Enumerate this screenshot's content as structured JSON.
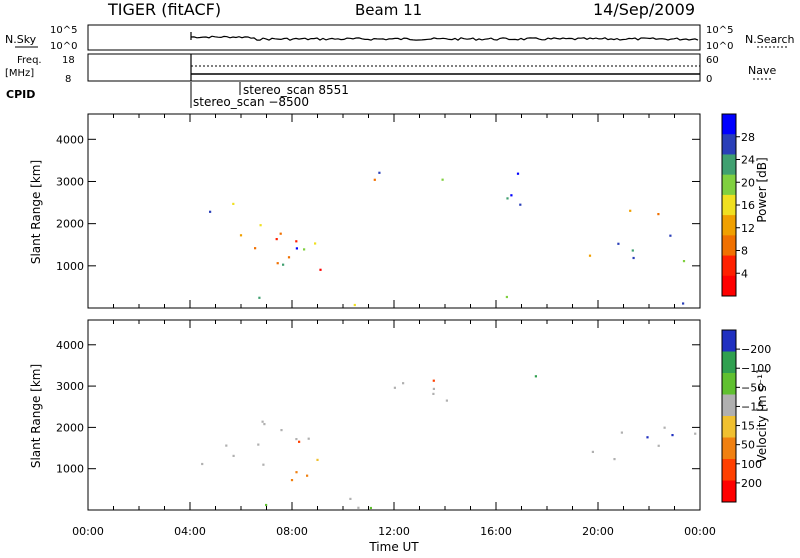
{
  "header": {
    "radar": "TIGER (fitACF)",
    "beam": "Beam 11",
    "date": "14/Sep/2009"
  },
  "labels": {
    "nsky": "N.Sky",
    "nsearch": "N.Search",
    "freq_line1": "Freq.",
    "freq_line2": "[MHz]",
    "nave": "Nave",
    "cpid": "CPID",
    "stereo_scan_1": "stereo_scan 8551",
    "stereo_scan_2": "stereo_scan −8500"
  },
  "chart_data": [
    {
      "type": "line",
      "title": "N.Sky / N.Search",
      "left_ticks": [
        "10^5",
        "10^0"
      ],
      "right_ticks": [
        "10^5",
        "10^0"
      ]
    },
    {
      "type": "line",
      "title": "Freq. / Nave",
      "left_ticks": [
        "18",
        "8"
      ],
      "right_ticks": [
        "60",
        "0"
      ]
    },
    {
      "type": "heatmap",
      "ylabel": "Slant Range [km]",
      "yticks": [
        1000,
        2000,
        3000,
        4000
      ],
      "ylim": [
        0,
        4600
      ],
      "xlim": [
        0,
        24
      ],
      "colorbar": {
        "label": "Power [dB]",
        "ticks": [
          "4",
          "8",
          "12",
          "16",
          "20",
          "24",
          "28"
        ],
        "colors": [
          "#0000ff",
          "#2a3fb8",
          "#40a070",
          "#80d040",
          "#f0e020",
          "#f0a000",
          "#f07000",
          "#ff2000",
          "#ff0000"
        ]
      }
    },
    {
      "type": "heatmap",
      "ylabel": "Slant Range [km]",
      "yticks": [
        1000,
        2000,
        3000,
        4000
      ],
      "ylim": [
        0,
        4600
      ],
      "xlim": [
        0,
        24
      ],
      "xlabel": "Time UT",
      "xticks": [
        "00:00",
        "04:00",
        "08:00",
        "12:00",
        "16:00",
        "20:00",
        "00:00"
      ],
      "colorbar": {
        "label": "Velocity [m s⁻¹]",
        "ticks": [
          "200",
          "100",
          "50",
          "15",
          "−15",
          "−50",
          "−100",
          "−200"
        ],
        "colors": [
          "#2030c0",
          "#30a050",
          "#60c030",
          "#b0b0b0",
          "#f0c030",
          "#f08010",
          "#ff4000",
          "#ff0000"
        ]
      }
    }
  ]
}
